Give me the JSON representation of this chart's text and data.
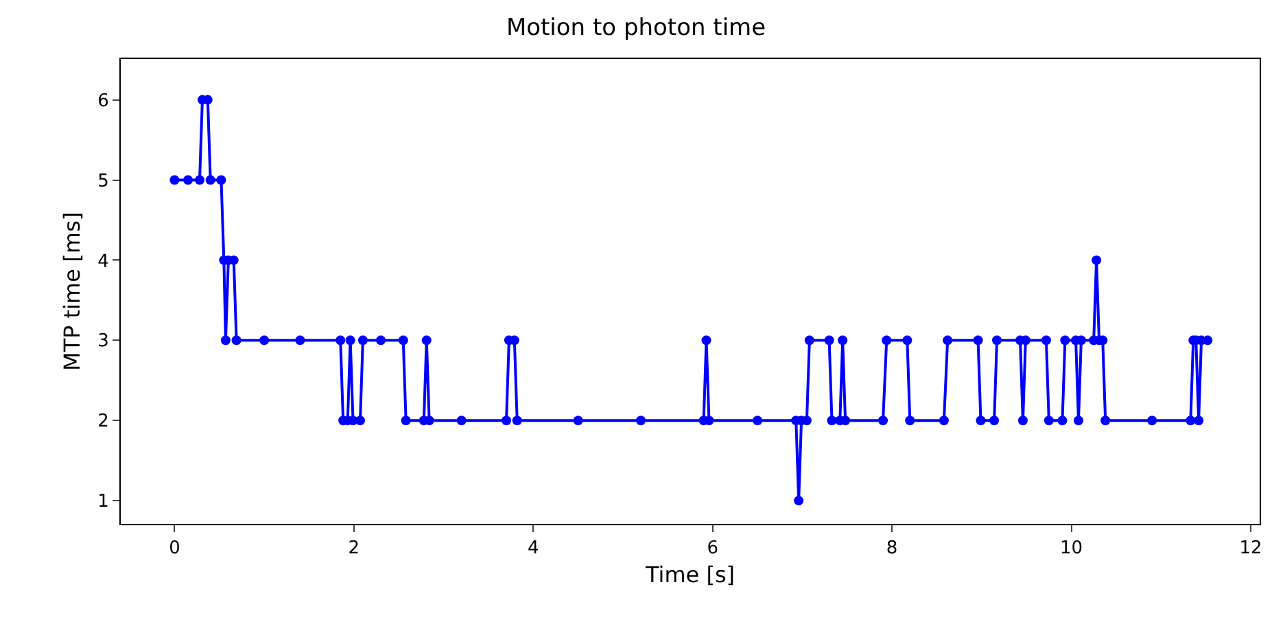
{
  "chart_data": {
    "type": "line",
    "title": "Motion to photon time",
    "xlabel": "Time [s]",
    "ylabel": "MTP time [ms]",
    "x": [
      0,
      0.15,
      0.28,
      0.31,
      0.37,
      0.4,
      0.52,
      0.55,
      0.57,
      0.6,
      0.66,
      0.69,
      1.0,
      1.4,
      1.85,
      1.88,
      1.93,
      1.96,
      1.99,
      2.07,
      2.1,
      2.3,
      2.55,
      2.58,
      2.78,
      2.81,
      2.84,
      3.2,
      3.7,
      3.73,
      3.79,
      3.82,
      4.5,
      5.2,
      5.9,
      5.93,
      5.96,
      6.5,
      6.93,
      6.96,
      6.99,
      7.05,
      7.08,
      7.3,
      7.33,
      7.42,
      7.45,
      7.48,
      7.9,
      7.94,
      8.17,
      8.2,
      8.58,
      8.62,
      8.96,
      8.99,
      9.14,
      9.17,
      9.43,
      9.46,
      9.49,
      9.72,
      9.75,
      9.9,
      9.93,
      10.05,
      10.08,
      10.11,
      10.25,
      10.28,
      10.31,
      10.35,
      10.38,
      10.9,
      11.33,
      11.36,
      11.39,
      11.42,
      11.45,
      11.52
    ],
    "series": [
      {
        "color": "#0000ff",
        "values": [
          5,
          5,
          5,
          6,
          6,
          5,
          5,
          4,
          3,
          4,
          4,
          3,
          3,
          3,
          3,
          2,
          2,
          3,
          2,
          2,
          3,
          3,
          3,
          2,
          2,
          3,
          2,
          2,
          2,
          3,
          3,
          2,
          2,
          2,
          2,
          3,
          2,
          2,
          2,
          1,
          2,
          2,
          3,
          3,
          2,
          2,
          3,
          2,
          2,
          3,
          3,
          2,
          2,
          3,
          3,
          2,
          2,
          3,
          3,
          2,
          3,
          3,
          2,
          2,
          3,
          3,
          2,
          3,
          3,
          4,
          3,
          3,
          2,
          2,
          2,
          3,
          3,
          2,
          3,
          3
        ]
      }
    ],
    "xlim": [
      -0.6,
      12.1
    ],
    "ylim": [
      0.71,
      6.51
    ],
    "xticks": [
      0,
      2,
      4,
      6,
      8,
      10,
      12
    ],
    "yticks": [
      1,
      2,
      3,
      4,
      5,
      6
    ],
    "grid": false,
    "legend": false,
    "marker": "circle",
    "line_style": "solid"
  }
}
